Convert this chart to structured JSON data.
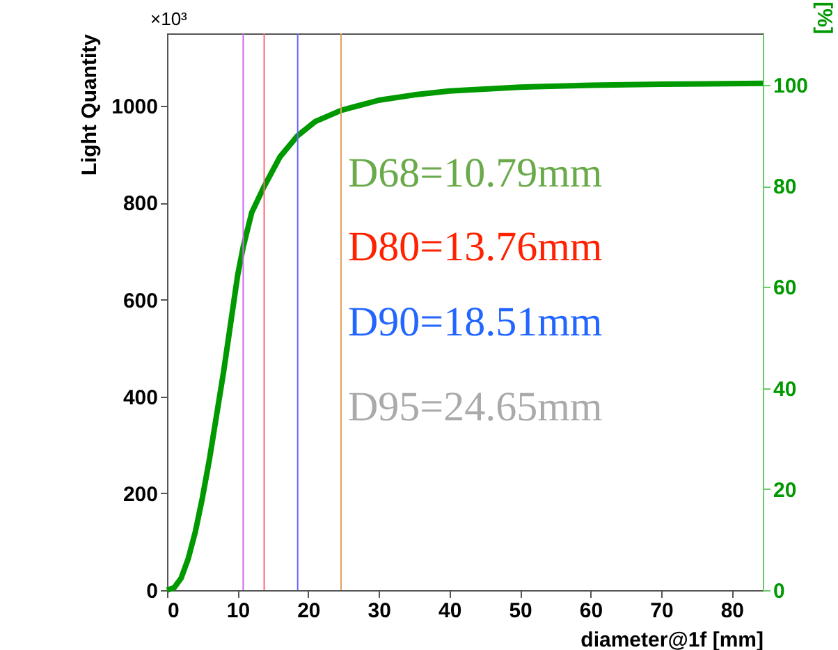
{
  "chart_data": {
    "type": "line",
    "xlabel": "diameter@1f [mm]",
    "ylabel": "Light Quantity",
    "y2label": "[%]",
    "x": [
      0,
      1,
      2,
      3,
      4,
      5,
      6,
      7,
      8,
      9,
      10,
      10.79,
      12,
      13.76,
      16,
      18.51,
      21,
      24.65,
      30,
      35,
      40,
      50,
      60,
      70,
      84.4
    ],
    "series": [
      {
        "color": "#009900",
        "values": [
          0,
          5,
          25,
          65,
          120,
          190,
          270,
          360,
          450,
          550,
          650,
          709,
          780,
          834,
          895,
          939,
          968,
          991,
          1012,
          1023,
          1031,
          1039,
          1043,
          1045,
          1047
        ]
      }
    ],
    "xlim": [
      0,
      84.4
    ],
    "xticks": [
      0,
      10,
      20,
      30,
      40,
      50,
      60,
      70,
      80
    ],
    "ylim": [
      0,
      1150
    ],
    "yticks": [
      0,
      200,
      400,
      600,
      800,
      1000
    ],
    "y2lim": [
      0,
      110.2
    ],
    "y2ticks": [
      0,
      20,
      40,
      60,
      80,
      100
    ],
    "ref_lines": [
      {
        "axis": "x",
        "value": 10.79,
        "color": "#cc66ee"
      },
      {
        "axis": "x",
        "value": 13.76,
        "color": "#ff6677"
      },
      {
        "axis": "x",
        "value": 18.51,
        "color": "#6666ff"
      },
      {
        "axis": "x",
        "value": 24.65,
        "color": "#e0a060"
      }
    ],
    "annotations": [
      "×10³",
      "D68=10.79mm",
      "D80=13.76mm",
      "D90=18.51mm",
      "D95=24.65mm"
    ],
    "grid": false,
    "marker": "none",
    "line_style": "solid"
  }
}
